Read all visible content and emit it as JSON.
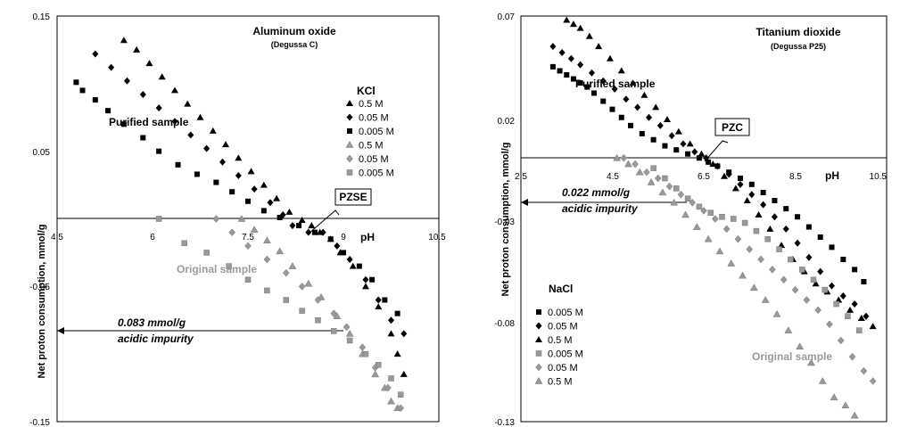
{
  "colors": {
    "black": "#000000",
    "gray": "#999999",
    "grayText": "#9a9a9a"
  },
  "chart_data": [
    {
      "type": "scatter",
      "title": "Aluminum oxide",
      "subtitle": "(Degussa C)",
      "xlabel": "pH",
      "ylabel": "Net proton consumption, mmol/g",
      "xlim": [
        4.5,
        10.5
      ],
      "ylim": [
        -0.15,
        0.15
      ],
      "xticks": [
        "4.5",
        "6",
        "7.5",
        "9",
        "10.5"
      ],
      "yticks": [
        "0.15",
        "0.05",
        "-0.05",
        "-0.15"
      ],
      "grid": false,
      "legend_title": "KCl",
      "legend_position": "top-right",
      "labels": {
        "purified": "Purified sample",
        "original": "Original sample",
        "pzse": "PZSE",
        "impurity_value": "0.083 mmol/g",
        "impurity_text": "acidic impurity"
      },
      "series": [
        {
          "name": "0.5 M",
          "marker": "triangle",
          "color": "#000000",
          "x": [
            5.55,
            5.75,
            5.95,
            6.15,
            6.35,
            6.55,
            6.75,
            6.95,
            7.15,
            7.35,
            7.55,
            7.75,
            7.95,
            8.15,
            8.35,
            8.5,
            8.63,
            8.8,
            8.95,
            9.15,
            9.35,
            9.55,
            9.75,
            9.85,
            9.95
          ],
          "y": [
            0.132,
            0.125,
            0.115,
            0.105,
            0.095,
            0.085,
            0.075,
            0.065,
            0.055,
            0.045,
            0.035,
            0.025,
            0.015,
            0.005,
            -0.001,
            -0.005,
            -0.01,
            -0.015,
            -0.025,
            -0.035,
            -0.05,
            -0.065,
            -0.085,
            -0.1,
            -0.115
          ]
        },
        {
          "name": "0.05 M",
          "marker": "diamond",
          "color": "#000000",
          "x": [
            5.1,
            5.35,
            5.6,
            5.85,
            6.1,
            6.35,
            6.6,
            6.85,
            7.1,
            7.35,
            7.6,
            7.85,
            8.05,
            8.2,
            8.45,
            8.68,
            8.9,
            9.1,
            9.35,
            9.55,
            9.75,
            9.95
          ],
          "y": [
            0.122,
            0.112,
            0.102,
            0.092,
            0.082,
            0.072,
            0.062,
            0.052,
            0.042,
            0.032,
            0.022,
            0.012,
            0.003,
            -0.005,
            -0.01,
            -0.01,
            -0.02,
            -0.03,
            -0.045,
            -0.06,
            -0.075,
            -0.085
          ]
        },
        {
          "name": "0.005 M",
          "marker": "square",
          "color": "#000000",
          "x": [
            4.8,
            4.9,
            5.1,
            5.3,
            5.55,
            5.85,
            6.1,
            6.4,
            6.7,
            7.0,
            7.25,
            7.5,
            7.75,
            8.0,
            8.3,
            8.55,
            8.8,
            9.0,
            9.25,
            9.45,
            9.65,
            9.85
          ],
          "y": [
            0.101,
            0.095,
            0.088,
            0.08,
            0.07,
            0.06,
            0.05,
            0.04,
            0.033,
            0.027,
            0.02,
            0.013,
            0.006,
            0.001,
            -0.005,
            -0.01,
            -0.015,
            -0.025,
            -0.035,
            -0.045,
            -0.06,
            -0.07
          ]
        },
        {
          "name": "0.5 M",
          "marker": "triangle",
          "color": "#999999",
          "x": [
            7.4,
            7.6,
            7.8,
            8.0,
            8.2,
            8.45,
            8.65,
            8.9,
            9.1,
            9.3,
            9.5,
            9.65,
            9.75,
            9.85
          ],
          "y": [
            0.0,
            -0.008,
            -0.016,
            -0.024,
            -0.035,
            -0.048,
            -0.058,
            -0.072,
            -0.085,
            -0.1,
            -0.115,
            -0.125,
            -0.135,
            -0.14
          ]
        },
        {
          "name": "0.05 M",
          "marker": "diamond",
          "color": "#999999",
          "x": [
            7.0,
            7.25,
            7.5,
            7.8,
            8.1,
            8.35,
            8.6,
            8.85,
            9.05,
            9.3,
            9.5,
            9.7,
            9.9
          ],
          "y": [
            0.0,
            -0.01,
            -0.02,
            -0.03,
            -0.04,
            -0.05,
            -0.06,
            -0.07,
            -0.08,
            -0.095,
            -0.11,
            -0.125,
            -0.14
          ]
        },
        {
          "name": "0.005 M",
          "marker": "square",
          "color": "#999999",
          "x": [
            6.1,
            6.5,
            6.85,
            7.2,
            7.5,
            7.8,
            8.1,
            8.35,
            8.6,
            8.85,
            9.1,
            9.35,
            9.55,
            9.75,
            9.9
          ],
          "y": [
            0.0,
            -0.018,
            -0.025,
            -0.035,
            -0.045,
            -0.053,
            -0.06,
            -0.068,
            -0.075,
            -0.083,
            -0.09,
            -0.1,
            -0.108,
            -0.118,
            -0.13
          ]
        }
      ]
    },
    {
      "type": "scatter",
      "title": "Titanium  dioxide",
      "subtitle": "(Degussa P25)",
      "xlabel": "pH",
      "ylabel": "Net proton consumption, mmol/g",
      "xlim": [
        2.5,
        10.5
      ],
      "ylim": [
        -0.13,
        0.07
      ],
      "xticks": [
        "2.5",
        "4.5",
        "6.5",
        "8.5",
        "10.5"
      ],
      "yticks": [
        "0.07",
        "0.02",
        "-0.03",
        "-0.08",
        "-0.13"
      ],
      "grid": false,
      "legend_title": "NaCl",
      "legend_position": "bottom-left",
      "labels": {
        "purified": "Purified sample",
        "original": "Original sample",
        "pzc": "PZC",
        "impurity_value": "0.022 mmol/g",
        "impurity_text": "acidic impurity"
      },
      "series": [
        {
          "name": "0.005 M",
          "marker": "square",
          "color": "#000000",
          "x": [
            3.2,
            3.35,
            3.5,
            3.65,
            3.8,
            3.95,
            4.1,
            4.3,
            4.5,
            4.7,
            4.9,
            5.15,
            5.4,
            5.65,
            5.9,
            6.15,
            6.4,
            6.6,
            6.8,
            7.05,
            7.3,
            7.55,
            7.8,
            8.05,
            8.3,
            8.55,
            8.8,
            9.05,
            9.3,
            9.55,
            9.8,
            10.0
          ],
          "y": [
            0.045,
            0.043,
            0.041,
            0.039,
            0.037,
            0.035,
            0.032,
            0.028,
            0.024,
            0.02,
            0.016,
            0.012,
            0.009,
            0.006,
            0.004,
            0.002,
            0.0,
            -0.002,
            -0.004,
            -0.007,
            -0.01,
            -0.013,
            -0.017,
            -0.021,
            -0.025,
            -0.029,
            -0.034,
            -0.039,
            -0.044,
            -0.05,
            -0.055,
            -0.061
          ]
        },
        {
          "name": "0.05 M",
          "marker": "diamond",
          "color": "#000000",
          "x": [
            3.2,
            3.4,
            3.6,
            3.8,
            4.05,
            4.3,
            4.55,
            4.8,
            5.05,
            5.3,
            5.55,
            5.8,
            6.05,
            6.3,
            6.55,
            6.8,
            7.05,
            7.3,
            7.55,
            7.8,
            8.05,
            8.3,
            8.55,
            8.8,
            9.05,
            9.3,
            9.55,
            9.8,
            10.05
          ],
          "y": [
            0.055,
            0.052,
            0.049,
            0.046,
            0.042,
            0.038,
            0.034,
            0.029,
            0.025,
            0.02,
            0.016,
            0.011,
            0.007,
            0.003,
            0.0,
            -0.004,
            -0.008,
            -0.013,
            -0.018,
            -0.023,
            -0.029,
            -0.035,
            -0.042,
            -0.049,
            -0.056,
            -0.063,
            -0.068,
            -0.072,
            -0.078
          ]
        },
        {
          "name": "0.5 M",
          "marker": "triangle",
          "color": "#000000",
          "x": [
            3.5,
            3.65,
            3.8,
            4.0,
            4.2,
            4.45,
            4.7,
            4.95,
            5.2,
            5.45,
            5.7,
            5.95,
            6.2,
            6.45,
            6.7,
            6.95,
            7.2,
            7.45,
            7.7,
            7.95,
            8.2,
            8.45,
            8.7,
            8.95,
            9.2,
            9.45,
            9.7,
            9.95,
            10.2
          ],
          "y": [
            0.068,
            0.066,
            0.064,
            0.06,
            0.055,
            0.049,
            0.043,
            0.037,
            0.031,
            0.025,
            0.019,
            0.013,
            0.007,
            0.002,
            -0.003,
            -0.009,
            -0.015,
            -0.021,
            -0.028,
            -0.035,
            -0.043,
            -0.05,
            -0.056,
            -0.062,
            -0.066,
            -0.07,
            -0.075,
            -0.079,
            -0.083
          ]
        },
        {
          "name": "0.005 M",
          "marker": "square",
          "color": "#999999",
          "x": [
            5.4,
            5.65,
            5.9,
            6.15,
            6.4,
            6.65,
            6.9,
            7.15,
            7.4,
            7.65,
            7.9,
            8.15,
            8.4,
            8.65,
            8.9,
            9.15,
            9.4,
            9.65,
            9.9
          ],
          "y": [
            -0.005,
            -0.01,
            -0.015,
            -0.02,
            -0.024,
            -0.027,
            -0.029,
            -0.03,
            -0.032,
            -0.036,
            -0.04,
            -0.045,
            -0.05,
            -0.055,
            -0.06,
            -0.065,
            -0.072,
            -0.078,
            -0.085
          ]
        },
        {
          "name": "0.05 M",
          "marker": "diamond",
          "color": "#999999",
          "x": [
            4.75,
            5.0,
            5.25,
            5.5,
            5.75,
            6.0,
            6.25,
            6.5,
            6.75,
            7.0,
            7.25,
            7.5,
            7.75,
            8.0,
            8.25,
            8.5,
            8.75,
            9.0,
            9.25,
            9.5,
            9.75,
            10.0,
            10.2
          ],
          "y": [
            0.0,
            -0.003,
            -0.007,
            -0.01,
            -0.014,
            -0.018,
            -0.022,
            -0.026,
            -0.03,
            -0.035,
            -0.04,
            -0.045,
            -0.05,
            -0.055,
            -0.06,
            -0.065,
            -0.07,
            -0.075,
            -0.082,
            -0.09,
            -0.098,
            -0.105,
            -0.11
          ]
        },
        {
          "name": "0.5 M",
          "marker": "triangle",
          "color": "#999999",
          "x": [
            4.6,
            4.85,
            5.1,
            5.35,
            5.6,
            5.85,
            6.1,
            6.35,
            6.6,
            6.85,
            7.1,
            7.35,
            7.6,
            7.85,
            8.1,
            8.35,
            8.6,
            8.85,
            9.1,
            9.35,
            9.6,
            9.8
          ],
          "y": [
            0.0,
            -0.003,
            -0.007,
            -0.012,
            -0.017,
            -0.022,
            -0.028,
            -0.034,
            -0.04,
            -0.046,
            -0.052,
            -0.058,
            -0.064,
            -0.07,
            -0.077,
            -0.085,
            -0.093,
            -0.101,
            -0.11,
            -0.118,
            -0.122,
            -0.127
          ]
        }
      ]
    }
  ]
}
